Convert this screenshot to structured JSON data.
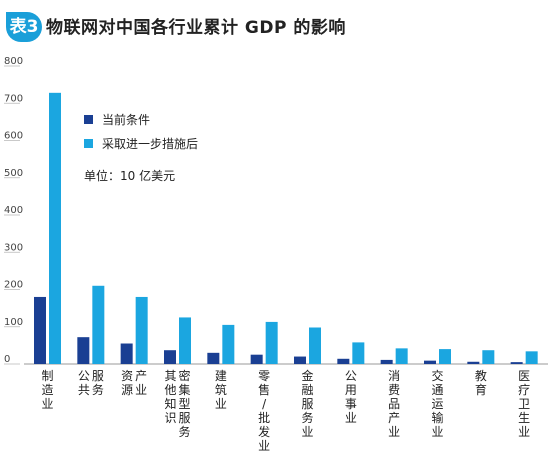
{
  "header": {
    "badge": "表3",
    "title": "物联网对中国各行业累计 GDP 的影响"
  },
  "chart_data": {
    "type": "bar",
    "title": "物联网对中国各行业累计 GDP 的影响",
    "xlabel": "",
    "ylabel": "",
    "ylim": [
      0,
      800
    ],
    "yticks": [
      0,
      100,
      200,
      300,
      400,
      500,
      600,
      700,
      800
    ],
    "grid": false,
    "legend_position": "top-left",
    "unit_note": "单位：10 亿美元",
    "categories": [
      "制造业",
      "公共服务",
      "资源产业",
      "其他知识密集型服务",
      "建筑业",
      "零售批发业",
      "金融服务业",
      "公用事业",
      "消费品产业",
      "交通运输业",
      "教育",
      "医疗卫生业"
    ],
    "category_columns": [
      [
        "制造业"
      ],
      [
        "公共",
        "服务"
      ],
      [
        "资源",
        "产业"
      ],
      [
        "其他知识",
        "密集型服务"
      ],
      [
        "建筑业"
      ],
      [
        "零售/批发业"
      ],
      [
        "金融服务业"
      ],
      [
        "公用事业"
      ],
      [
        "消费品产业"
      ],
      [
        "交通运输业"
      ],
      [
        "教育"
      ],
      [
        "医疗卫生业"
      ]
    ],
    "series": [
      {
        "name": "当前条件",
        "color": "#1a3f93",
        "values": [
          180,
          72,
          55,
          37,
          30,
          25,
          20,
          14,
          11,
          9,
          6,
          5
        ]
      },
      {
        "name": "采取进一步措施后",
        "color": "#1ba6e0",
        "values": [
          728,
          210,
          180,
          125,
          105,
          113,
          98,
          58,
          42,
          40,
          37,
          34
        ]
      }
    ]
  }
}
